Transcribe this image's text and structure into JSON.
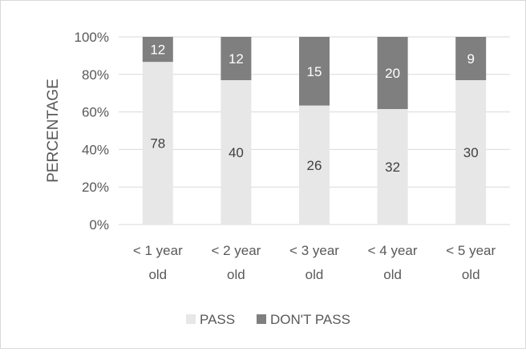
{
  "chart_data": {
    "type": "bar",
    "stacked": "percent",
    "categories": [
      [
        "< 1 year",
        "old"
      ],
      [
        "< 2 year",
        "old"
      ],
      [
        "< 3 year",
        "old"
      ],
      [
        "< 4 year",
        "old"
      ],
      [
        "< 5 year",
        "old"
      ]
    ],
    "series": [
      {
        "name": "PASS",
        "values": [
          78,
          40,
          26,
          32,
          30
        ],
        "color": "#e7e7e7"
      },
      {
        "name": "DON'T PASS",
        "values": [
          12,
          12,
          15,
          20,
          9
        ],
        "color": "#7f7f7f"
      }
    ],
    "ylabel": "PERCENTAGE",
    "yticks": [
      "0%",
      "20%",
      "40%",
      "60%",
      "80%",
      "100%"
    ],
    "ylim": [
      0,
      100
    ],
    "grid": true,
    "legend_position": "bottom",
    "data_label_color": "#404040",
    "data_label_dark_color": "#ffffff",
    "axis_text_color": "#595959",
    "gridline_color": "#d9d9d9"
  }
}
